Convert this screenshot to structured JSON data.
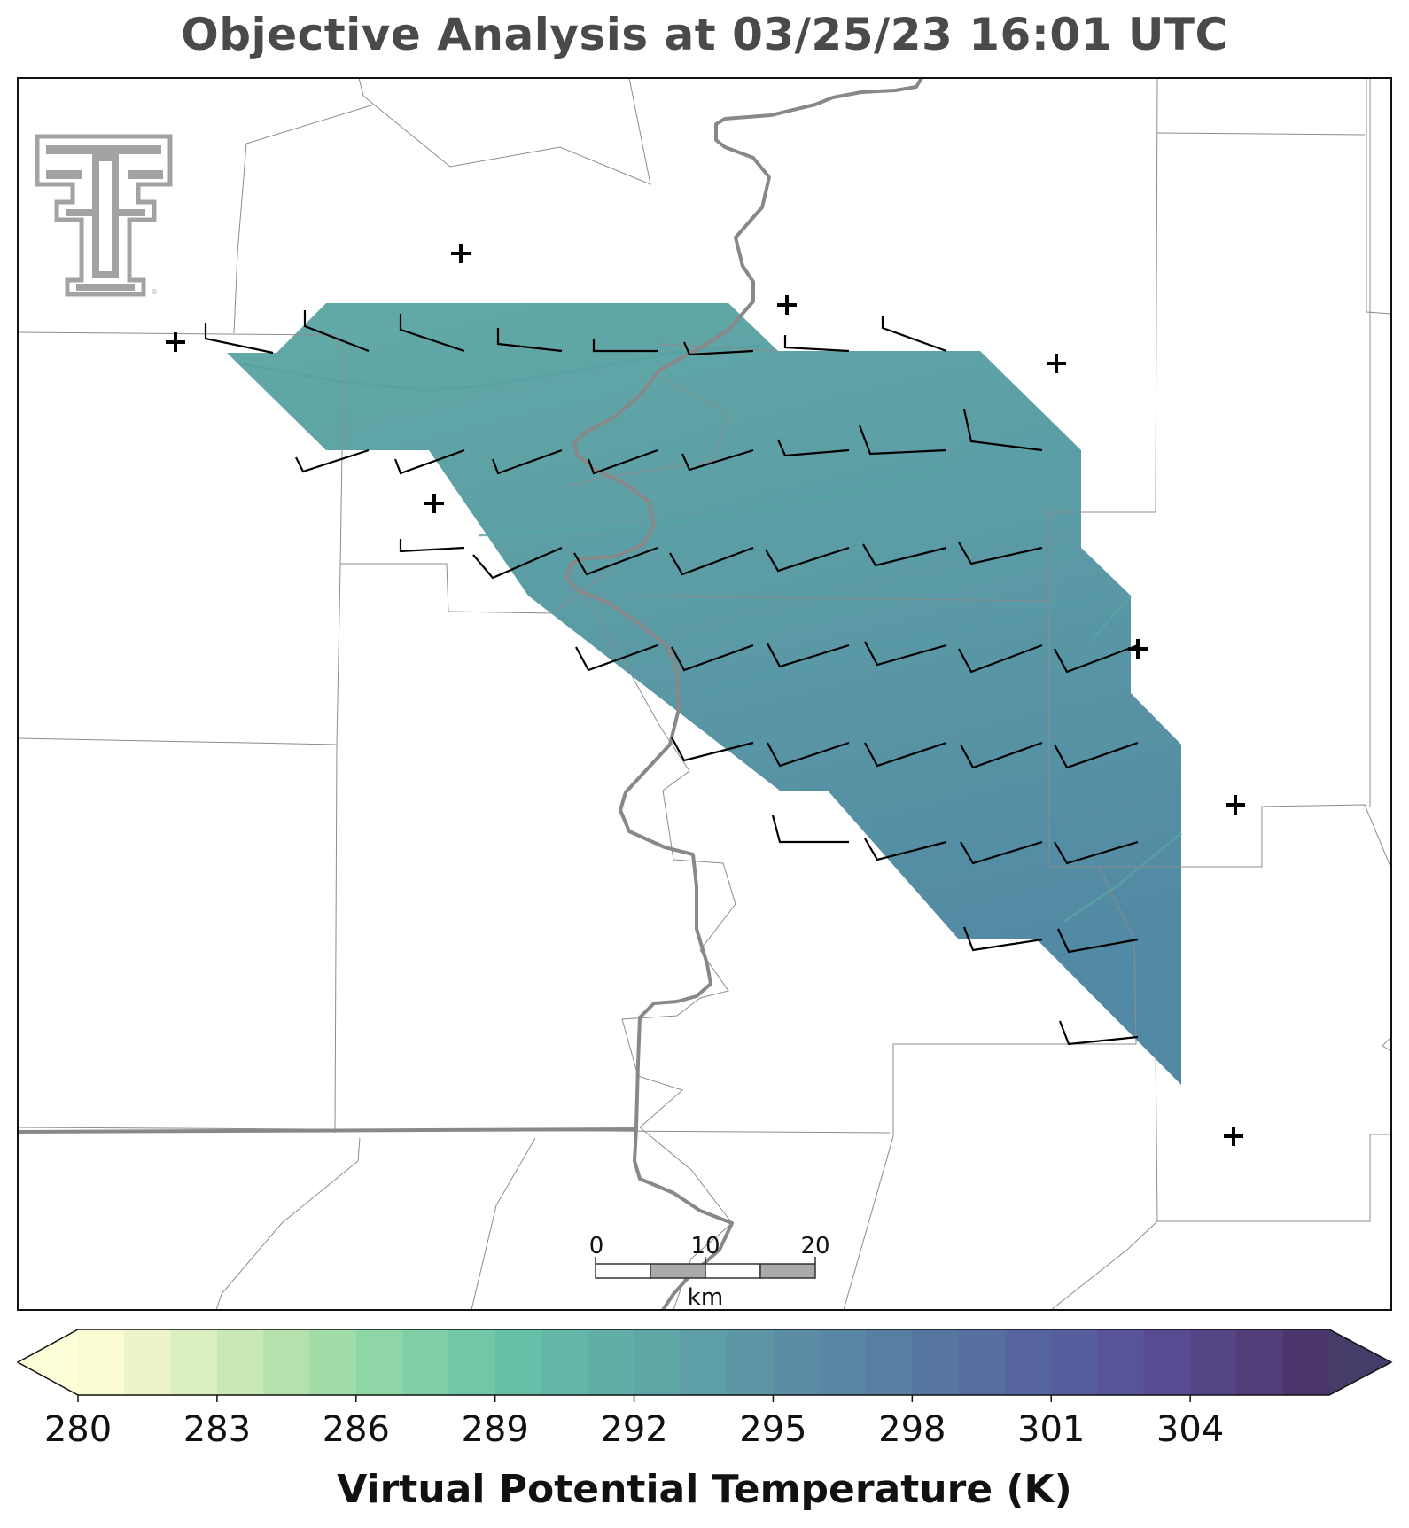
{
  "title": "Objective Analysis at 03/25/23 16:01 UTC",
  "colorbar": {
    "label": "Virtual Potential Temperature (K)",
    "ticks": [
      "280",
      "283",
      "286",
      "289",
      "292",
      "295",
      "298",
      "301",
      "304"
    ],
    "min": 280,
    "max": 307,
    "step": 1,
    "colormap": "crest_r",
    "extend": "both",
    "colors": [
      "#fbfbd2",
      "#ecf5c8",
      "#dcefbf",
      "#c9e8b5",
      "#b5e1ac",
      "#a1dca8",
      "#8fd6a6",
      "#7ecfa6",
      "#70c8a7",
      "#66c0a8",
      "#62b7a8",
      "#60aea7",
      "#5fa6a6",
      "#5e9ea6",
      "#5d96a5",
      "#5b8ea4",
      "#5986a3",
      "#587ea2",
      "#5676a1",
      "#566ea0",
      "#57659f",
      "#575d9d",
      "#585499",
      "#584b91",
      "#564586",
      "#513d78",
      "#4b356a"
    ]
  },
  "scale_bar": {
    "labels": [
      "0",
      "10",
      "20"
    ],
    "unit": "km"
  },
  "logo": {
    "name": "texas-tech-double-t-logo",
    "text": "TT"
  },
  "analysis_field_colors": {
    "top": "#62aaa6",
    "mid": "#5b9aa5",
    "bottom": "#5489a4"
  },
  "stations_count_visible": 9
}
